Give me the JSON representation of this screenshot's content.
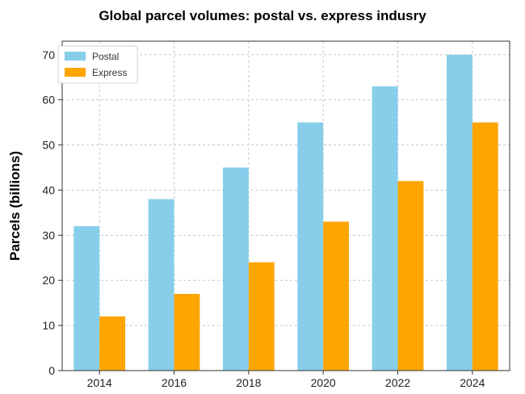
{
  "chart_data": {
    "type": "bar",
    "title": "Global parcel volumes: postal vs. express indusry",
    "xlabel": "",
    "ylabel": "Parcels (billions)",
    "categories": [
      "2014",
      "2016",
      "2018",
      "2020",
      "2022",
      "2024"
    ],
    "series": [
      {
        "name": "Postal",
        "values": [
          32,
          38,
          45,
          55,
          63,
          70
        ],
        "color": "#87ceeb"
      },
      {
        "name": "Express",
        "values": [
          12,
          17,
          24,
          33,
          42,
          55
        ],
        "color": "#ffa500"
      }
    ],
    "ylim": [
      0,
      73
    ],
    "yticks": [
      0,
      10,
      20,
      30,
      40,
      50,
      60,
      70
    ],
    "grid": true,
    "legend_position": "top-left"
  }
}
